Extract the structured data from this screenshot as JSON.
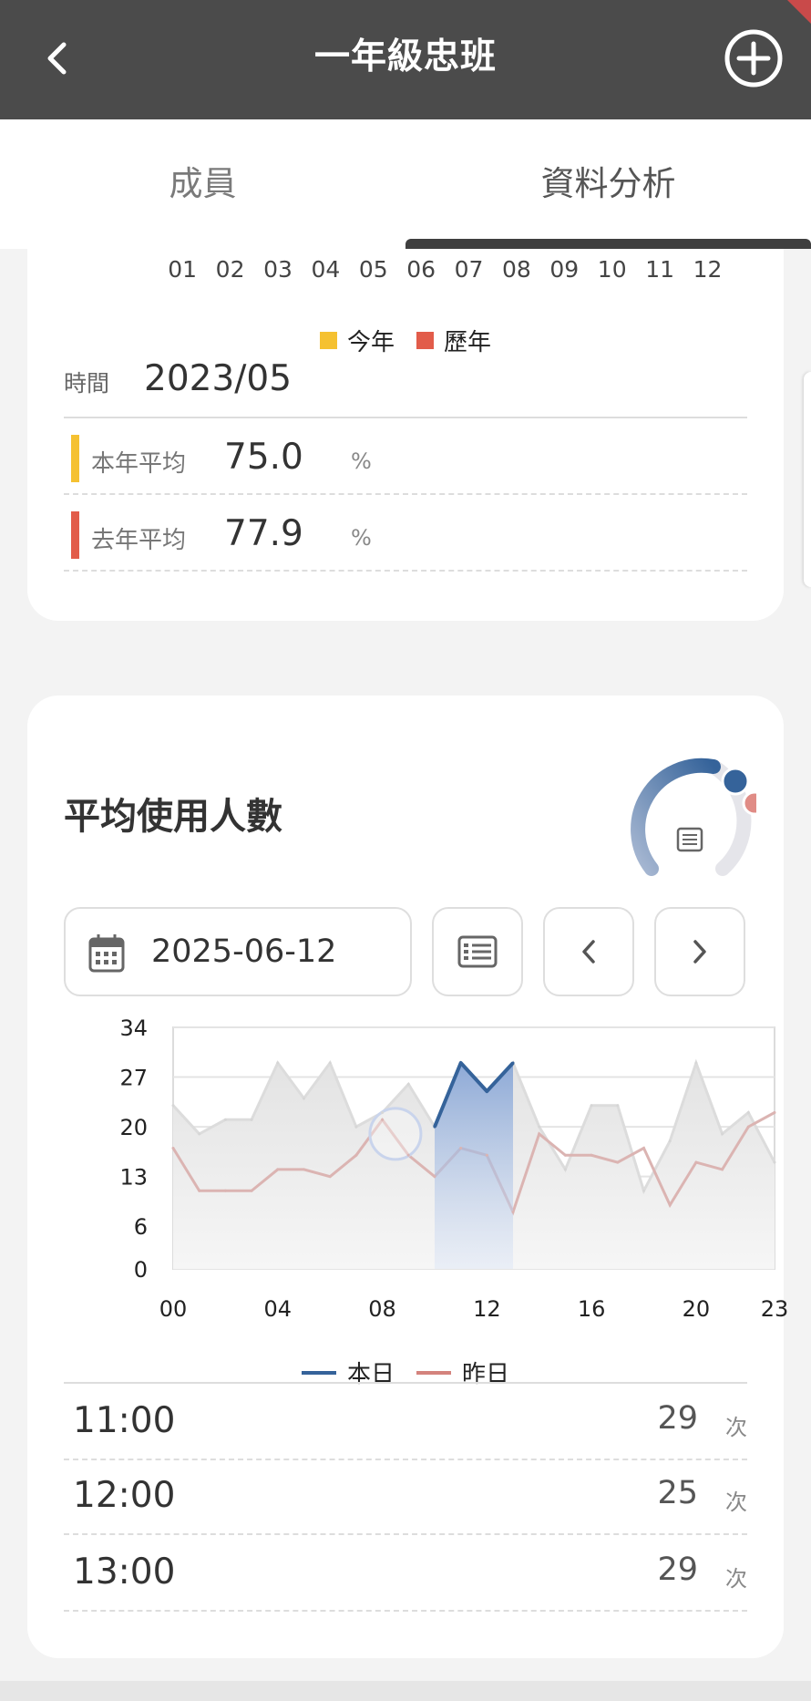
{
  "header": {
    "title": "一年級忠班"
  },
  "tabs": [
    {
      "label": "成員",
      "active": false
    },
    {
      "label": "資料分析",
      "active": true
    }
  ],
  "monthly_card": {
    "months": [
      "01",
      "02",
      "03",
      "04",
      "05",
      "06",
      "07",
      "08",
      "09",
      "10",
      "11",
      "12"
    ],
    "legend": [
      {
        "label": "今年",
        "color": "#f5c131"
      },
      {
        "label": "歷年",
        "color": "#e25c4a"
      }
    ],
    "time_label": "時間",
    "time_value": "2023/05",
    "averages": [
      {
        "label": "本年平均",
        "value": "75.0",
        "unit": "%",
        "color": "#f5c131"
      },
      {
        "label": "去年平均",
        "value": "77.9",
        "unit": "%",
        "color": "#e25c4a"
      }
    ]
  },
  "usage_card": {
    "title": "平均使用人數",
    "date": "2025-06-12",
    "colors": {
      "today": "#35639a",
      "yesterday": "#e08c86"
    },
    "chart_data": {
      "type": "area",
      "y_ticks": [
        "34",
        "27",
        "20",
        "13",
        "6",
        "0"
      ],
      "x_ticks": [
        "00",
        "04",
        "08",
        "12",
        "16",
        "20",
        "23"
      ],
      "ylim": [
        0,
        34
      ],
      "xlim": [
        0,
        23
      ],
      "series": [
        {
          "name": "本日",
          "x": [
            0,
            1,
            2,
            3,
            4,
            5,
            6,
            7,
            8,
            9,
            10,
            11,
            12,
            13,
            14,
            15,
            16,
            17,
            18,
            19,
            20,
            21,
            22,
            23
          ],
          "values": [
            23,
            19,
            21,
            21,
            29,
            24,
            29,
            20,
            22,
            26,
            20,
            29,
            25,
            29,
            20,
            14,
            23,
            23,
            11,
            18,
            29,
            19,
            22,
            15
          ],
          "highlight_range": [
            10,
            13
          ]
        },
        {
          "name": "昨日",
          "x": [
            0,
            1,
            2,
            3,
            4,
            5,
            6,
            7,
            8,
            9,
            10,
            11,
            12,
            13,
            14,
            15,
            16,
            17,
            18,
            19,
            20,
            21,
            22,
            23
          ],
          "values": [
            17,
            11,
            11,
            11,
            14,
            14,
            13,
            16,
            21,
            16,
            13,
            17,
            16,
            8,
            19,
            16,
            16,
            15,
            17,
            9,
            15,
            14,
            20,
            22
          ]
        }
      ]
    },
    "list": [
      {
        "time": "11:00",
        "count": "29",
        "unit": "次"
      },
      {
        "time": "12:00",
        "count": "25",
        "unit": "次"
      },
      {
        "time": "13:00",
        "count": "29",
        "unit": "次"
      }
    ]
  }
}
